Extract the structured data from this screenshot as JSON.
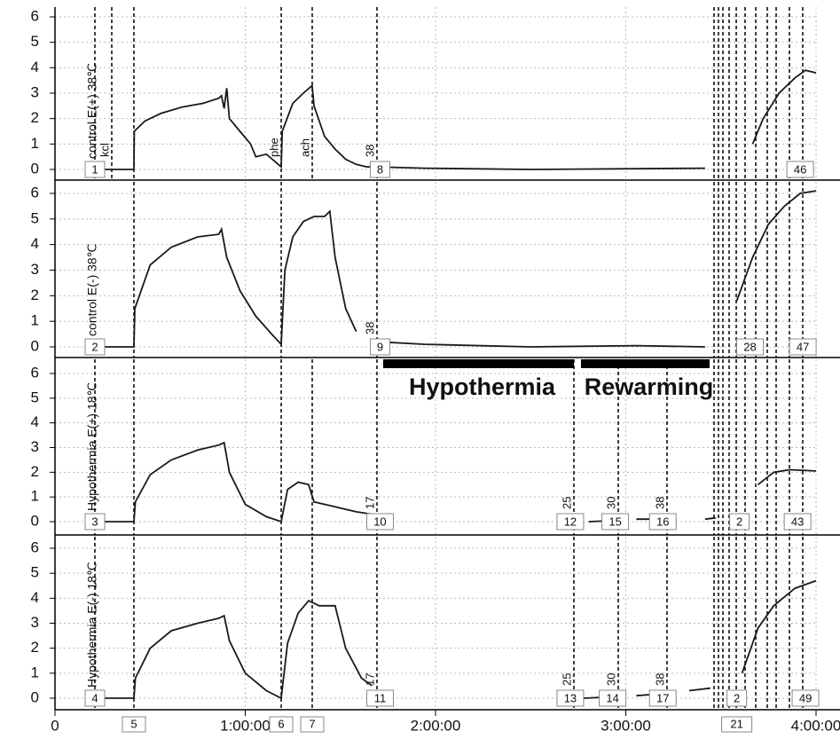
{
  "chart_data": {
    "type": "line",
    "xlim": [
      0,
      14400
    ],
    "xticks": [
      0,
      {
        "value": 3600,
        "label": "1:00:00"
      },
      {
        "value": 7200,
        "label": "2:00:00"
      },
      {
        "value": 10800,
        "label": "3:00:00"
      },
      {
        "value": 14400,
        "label": "4:00:00"
      }
    ],
    "grid": true,
    "color": "#1a1a1a",
    "panels": [
      {
        "ylabel": "control E(+) 38℃",
        "ylim": [
          0,
          6
        ],
        "yticks": [
          0,
          1,
          2,
          3,
          4,
          5,
          6
        ],
        "x": [
          755,
          1493,
          1500,
          1700,
          2000,
          2400,
          2800,
          3100,
          3150,
          3200,
          3250,
          3300,
          3500,
          3700,
          3800,
          4000,
          4279,
          4300,
          4500,
          4700,
          4866,
          4900,
          5100,
          5300,
          5500,
          5700,
          5900,
          6091,
          7000,
          9000,
          12300,
          12800,
          13200,
          13400,
          13700,
          14000,
          14200,
          14400
        ],
        "values": [
          0,
          0,
          1.5,
          1.9,
          2.2,
          2.45,
          2.6,
          2.8,
          2.9,
          2.4,
          3.2,
          2.0,
          1.5,
          1.0,
          0.5,
          0.6,
          0.1,
          1.5,
          2.6,
          3.0,
          3.3,
          2.5,
          1.3,
          0.8,
          0.4,
          0.2,
          0.1,
          0.1,
          0.05,
          0,
          0.05,
          null,
          1.0,
          2.0,
          3.0,
          3.6,
          3.9,
          3.8
        ],
        "markers": [
          755,
          1074,
          1493,
          4280,
          4867,
          6092,
          12470,
          12554,
          12638,
          12755,
          12890,
          13057,
          13259,
          13477,
          13645,
          13896,
          14148
        ],
        "boxes": [
          {
            "time": 755,
            "label": "1"
          },
          {
            "time": 6150,
            "label": "8"
          },
          {
            "time": 14100,
            "label": "46"
          }
        ],
        "notes": [
          {
            "time": 1074,
            "label": "kcl"
          },
          {
            "time": 4280,
            "label": "phe"
          },
          {
            "time": 4867,
            "label": "ach"
          },
          {
            "time": 6092,
            "label": "38"
          }
        ]
      },
      {
        "ylabel": "control E(-) 38℃",
        "ylim": [
          0,
          6
        ],
        "yticks": [
          0,
          1,
          2,
          3,
          4,
          5,
          6
        ],
        "x": [
          600,
          1493,
          1510,
          1800,
          2200,
          2700,
          3100,
          3150,
          3250,
          3500,
          3800,
          4100,
          4279,
          4350,
          4500,
          4700,
          4900,
          5100,
          5200,
          5300,
          5500,
          5700,
          5900,
          6091,
          7000,
          9000,
          11000,
          12300,
          12600,
          12900,
          13200,
          13500,
          13800,
          14100,
          14400
        ],
        "values": [
          0,
          0,
          1.5,
          3.2,
          3.9,
          4.3,
          4.4,
          4.6,
          3.5,
          2.2,
          1.2,
          0.5,
          0.1,
          3.0,
          4.3,
          4.9,
          5.1,
          5.1,
          5.3,
          3.5,
          1.5,
          0.6,
          null,
          0.2,
          0.1,
          0,
          0.05,
          0,
          null,
          1.8,
          3.5,
          4.8,
          5.5,
          6.0,
          6.1
        ],
        "markers": [
          1493,
          4280,
          6092,
          12470,
          12554,
          12638,
          12755,
          12890,
          13057,
          13259,
          13477,
          13645,
          13896,
          14148
        ],
        "boxes": [
          {
            "time": 755,
            "label": "2"
          },
          {
            "time": 6150,
            "label": "9"
          },
          {
            "time": 13150,
            "label": "28"
          },
          {
            "time": 14150,
            "label": "47"
          }
        ],
        "notes": [
          {
            "time": 6092,
            "label": "38"
          }
        ]
      },
      {
        "ylabel": "Hypothermia E(+) 18℃",
        "ylim": [
          0,
          6
        ],
        "yticks": [
          0,
          1,
          2,
          3,
          4,
          5,
          6
        ],
        "x": [
          700,
          1493,
          1520,
          1800,
          2200,
          2700,
          3100,
          3200,
          3300,
          3600,
          4000,
          4279,
          4400,
          4600,
          4800,
          4900,
          5300,
          5700,
          6000,
          8000,
          10100,
          10655,
          10800,
          11000,
          11600,
          12000,
          12300,
          12500,
          12900,
          13300,
          13600,
          13900,
          14400
        ],
        "values": [
          0,
          0,
          0.8,
          1.9,
          2.5,
          2.9,
          3.1,
          3.2,
          2.0,
          0.7,
          0.2,
          0,
          1.3,
          1.6,
          1.5,
          0.8,
          0.6,
          0.4,
          0.3,
          null,
          0,
          0.05,
          null,
          0.1,
          0.1,
          null,
          0.1,
          0.15,
          null,
          1.5,
          2.0,
          2.1,
          2.05
        ],
        "markers": [
          755,
          1493,
          4280,
          4867,
          6092,
          9818,
          10657,
          11580,
          12470,
          12554,
          12638,
          12755,
          12890,
          13057,
          13259,
          13477,
          13645,
          13896,
          14148
        ],
        "boxes": [
          {
            "time": 755,
            "label": "3"
          },
          {
            "time": 6150,
            "label": "10"
          },
          {
            "time": 9750,
            "label": "12"
          },
          {
            "time": 10600,
            "label": "15"
          },
          {
            "time": 11500,
            "label": "16"
          },
          {
            "time": 12950,
            "label": "2"
          },
          {
            "time": 14050,
            "label": "43"
          }
        ],
        "notes": [
          {
            "time": 6092,
            "label": "17"
          },
          {
            "time": 9818,
            "label": "25"
          },
          {
            "time": 10657,
            "label": "30"
          },
          {
            "time": 11580,
            "label": "38"
          }
        ]
      },
      {
        "ylabel": "Hypothermia E(-) 18℃",
        "ylim": [
          0,
          6
        ],
        "yticks": [
          0,
          1,
          2,
          3,
          4,
          5,
          6
        ],
        "x": [
          700,
          1493,
          1520,
          1800,
          2200,
          2700,
          3100,
          3200,
          3300,
          3600,
          4000,
          4279,
          4400,
          4600,
          4800,
          5000,
          5300,
          5500,
          5800,
          6000,
          8000,
          10000,
          10500,
          10800,
          11000,
          11600,
          11800,
          12000,
          12400,
          12700,
          13000,
          13300,
          13600,
          14000,
          14400
        ],
        "values": [
          0,
          0,
          0.8,
          2.0,
          2.7,
          3.0,
          3.2,
          3.3,
          2.3,
          1.0,
          0.3,
          0,
          2.2,
          3.4,
          3.9,
          3.7,
          3.7,
          2.0,
          0.8,
          0.5,
          null,
          0,
          0.05,
          null,
          0.1,
          0.2,
          null,
          0.3,
          0.4,
          null,
          1.0,
          2.8,
          3.7,
          4.4,
          4.7
        ],
        "markers": [
          755,
          1493,
          4280,
          4867,
          6092,
          9818,
          10657,
          11580,
          12470,
          12554,
          12638,
          12755,
          12890,
          13057,
          13259,
          13477,
          13645,
          13896,
          14148
        ],
        "boxes": [
          {
            "time": 755,
            "label": "4"
          },
          {
            "time": 6150,
            "label": "11"
          },
          {
            "time": 9750,
            "label": "13"
          },
          {
            "time": 10550,
            "label": "14"
          },
          {
            "time": 11500,
            "label": "17"
          },
          {
            "time": 12900,
            "label": "2"
          },
          {
            "time": 14200,
            "label": "49"
          }
        ],
        "notes": [
          {
            "time": 6092,
            "label": "17"
          },
          {
            "time": 9818,
            "label": "25"
          },
          {
            "time": 10657,
            "label": "30"
          },
          {
            "time": 11580,
            "label": "38"
          }
        ]
      }
    ],
    "periods": [
      {
        "label": "Hypothermia",
        "start": 6210,
        "end": 9818
      },
      {
        "label": "Rewarming",
        "start": 9952,
        "end": 12386
      }
    ],
    "axis_boxes": [
      {
        "time": 1493,
        "label": "5"
      },
      {
        "time": 4280,
        "label": "6"
      },
      {
        "time": 4867,
        "label": "7"
      },
      {
        "time": 12900,
        "label": "21"
      }
    ]
  }
}
